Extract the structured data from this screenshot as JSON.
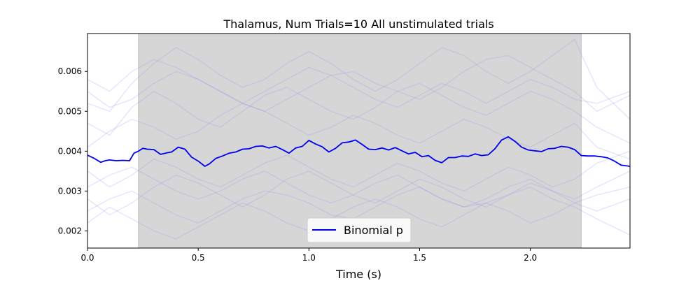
{
  "chart_data": {
    "type": "line",
    "title": "Thalamus, Num Trials=10 All unstimulated trials",
    "xlabel": "Time (s)",
    "ylabel": "",
    "xlim": [
      0.0,
      2.45
    ],
    "ylim": [
      0.00157,
      0.00695
    ],
    "x_ticks": [
      0.0,
      0.5,
      1.0,
      1.5,
      2.0
    ],
    "x_tick_labels": [
      "0.0",
      "0.5",
      "1.0",
      "1.5",
      "2.0"
    ],
    "y_ticks": [
      0.002,
      0.003,
      0.004,
      0.005,
      0.006
    ],
    "y_tick_labels": [
      "0.002",
      "0.003",
      "0.004",
      "0.005",
      "0.006"
    ],
    "shaded_region": {
      "x_start": 0.23,
      "x_end": 2.23,
      "color": "#d6d6d6"
    },
    "grid": false,
    "legend": {
      "placement": "lower-center",
      "entries": [
        "Binomial p"
      ]
    },
    "series": [
      {
        "name": "Binomial p",
        "color": "#0000ee",
        "x": [
          0.0,
          0.03,
          0.06,
          0.08,
          0.1,
          0.13,
          0.16,
          0.19,
          0.21,
          0.23,
          0.25,
          0.27,
          0.3,
          0.33,
          0.36,
          0.38,
          0.41,
          0.44,
          0.47,
          0.5,
          0.53,
          0.55,
          0.58,
          0.61,
          0.64,
          0.67,
          0.7,
          0.73,
          0.76,
          0.79,
          0.82,
          0.85,
          0.88,
          0.91,
          0.94,
          0.97,
          1.0,
          1.03,
          1.06,
          1.09,
          1.12,
          1.15,
          1.18,
          1.21,
          1.24,
          1.27,
          1.3,
          1.33,
          1.36,
          1.39,
          1.42,
          1.45,
          1.48,
          1.51,
          1.54,
          1.57,
          1.6,
          1.63,
          1.66,
          1.69,
          1.72,
          1.75,
          1.78,
          1.81,
          1.84,
          1.87,
          1.9,
          1.93,
          1.96,
          1.99,
          2.02,
          2.05,
          2.08,
          2.11,
          2.14,
          2.17,
          2.2,
          2.23,
          2.26,
          2.29,
          2.32,
          2.35,
          2.38,
          2.41,
          2.45
        ],
        "y": [
          0.0039,
          0.00382,
          0.00372,
          0.00376,
          0.00378,
          0.00376,
          0.00377,
          0.00376,
          0.00395,
          0.004,
          0.00407,
          0.00405,
          0.00404,
          0.00392,
          0.00396,
          0.00398,
          0.0041,
          0.00405,
          0.00385,
          0.00375,
          0.00362,
          0.00368,
          0.00382,
          0.00388,
          0.00395,
          0.00398,
          0.00405,
          0.00406,
          0.00412,
          0.00413,
          0.00408,
          0.00412,
          0.00404,
          0.00395,
          0.00408,
          0.00412,
          0.00427,
          0.00418,
          0.00411,
          0.00398,
          0.00407,
          0.00421,
          0.00423,
          0.00428,
          0.00417,
          0.00405,
          0.00404,
          0.00408,
          0.00403,
          0.00409,
          0.00401,
          0.00393,
          0.00397,
          0.00386,
          0.00389,
          0.00377,
          0.00371,
          0.00384,
          0.00384,
          0.00388,
          0.00387,
          0.00393,
          0.00389,
          0.00391,
          0.00406,
          0.00428,
          0.00436,
          0.00425,
          0.0041,
          0.00403,
          0.00401,
          0.00399,
          0.00406,
          0.00407,
          0.00412,
          0.0041,
          0.00404,
          0.00389,
          0.00388,
          0.00388,
          0.00386,
          0.00383,
          0.00375,
          0.00365,
          0.00362
        ]
      }
    ],
    "background_trials": {
      "color": "#8c8cf0",
      "opacity": 0.22,
      "x": [
        0.0,
        0.1,
        0.2,
        0.3,
        0.4,
        0.5,
        0.6,
        0.7,
        0.8,
        0.9,
        1.0,
        1.1,
        1.2,
        1.3,
        1.4,
        1.5,
        1.6,
        1.7,
        1.8,
        1.9,
        2.0,
        2.1,
        2.2,
        2.3,
        2.45
      ],
      "traces": [
        [
          0.0058,
          0.0055,
          0.006,
          0.0063,
          0.0061,
          0.0058,
          0.0055,
          0.0052,
          0.005,
          0.0053,
          0.0056,
          0.0059,
          0.006,
          0.0057,
          0.0055,
          0.0053,
          0.0056,
          0.006,
          0.0063,
          0.0064,
          0.0061,
          0.0058,
          0.0055,
          0.005,
          0.0054
        ],
        [
          0.0025,
          0.0028,
          0.003,
          0.0027,
          0.0024,
          0.0022,
          0.0025,
          0.0028,
          0.003,
          0.0029,
          0.0027,
          0.0024,
          0.0023,
          0.0026,
          0.0029,
          0.0031,
          0.0028,
          0.0026,
          0.0027,
          0.0029,
          0.0031,
          0.0028,
          0.0026,
          0.0023,
          0.0019
        ],
        [
          0.0047,
          0.0044,
          0.0051,
          0.0055,
          0.0052,
          0.0048,
          0.0046,
          0.005,
          0.0054,
          0.0056,
          0.0053,
          0.005,
          0.0048,
          0.0051,
          0.0055,
          0.0057,
          0.0054,
          0.0051,
          0.0049,
          0.0052,
          0.0055,
          0.0053,
          0.005,
          0.0046,
          0.0042
        ],
        [
          0.0031,
          0.0034,
          0.0036,
          0.0033,
          0.003,
          0.0028,
          0.003,
          0.0033,
          0.0035,
          0.0032,
          0.0029,
          0.0027,
          0.0029,
          0.0032,
          0.0034,
          0.0031,
          0.0028,
          0.0026,
          0.0028,
          0.0031,
          0.0033,
          0.003,
          0.0028,
          0.0031,
          0.0035
        ],
        [
          0.0052,
          0.005,
          0.0057,
          0.0062,
          0.0066,
          0.0063,
          0.0059,
          0.0056,
          0.0058,
          0.0062,
          0.0065,
          0.0062,
          0.0058,
          0.0055,
          0.0058,
          0.0062,
          0.0066,
          0.0064,
          0.006,
          0.0057,
          0.006,
          0.0064,
          0.0068,
          0.0056,
          0.0048
        ],
        [
          0.0022,
          0.0026,
          0.0023,
          0.002,
          0.0018,
          0.0021,
          0.0024,
          0.0027,
          0.0025,
          0.0022,
          0.002,
          0.0023,
          0.0026,
          0.0028,
          0.0026,
          0.0023,
          0.0021,
          0.0024,
          0.0027,
          0.0025,
          0.0022,
          0.0024,
          0.0027,
          0.0029,
          0.0031
        ],
        [
          0.0041,
          0.0045,
          0.0048,
          0.0046,
          0.0043,
          0.0045,
          0.0049,
          0.0052,
          0.005,
          0.0047,
          0.0044,
          0.0046,
          0.0049,
          0.0047,
          0.0044,
          0.0042,
          0.0045,
          0.0048,
          0.0046,
          0.0043,
          0.0041,
          0.0044,
          0.0047,
          0.0041,
          0.0038
        ],
        [
          0.0035,
          0.0031,
          0.0034,
          0.0038,
          0.0036,
          0.0033,
          0.0031,
          0.0034,
          0.0037,
          0.0039,
          0.0036,
          0.0033,
          0.0031,
          0.0034,
          0.0037,
          0.0035,
          0.0032,
          0.003,
          0.0033,
          0.0036,
          0.0034,
          0.0031,
          0.0033,
          0.0037,
          0.004
        ],
        [
          0.0055,
          0.0051,
          0.0053,
          0.0057,
          0.006,
          0.0058,
          0.0055,
          0.0052,
          0.0055,
          0.0058,
          0.0061,
          0.0059,
          0.0056,
          0.0053,
          0.0051,
          0.0054,
          0.0057,
          0.0055,
          0.0052,
          0.0055,
          0.0058,
          0.0056,
          0.0053,
          0.0052,
          0.0055
        ],
        [
          0.0028,
          0.0024,
          0.0027,
          0.0031,
          0.0034,
          0.0032,
          0.0029,
          0.0026,
          0.0029,
          0.0033,
          0.0035,
          0.0032,
          0.0029,
          0.0027,
          0.003,
          0.0033,
          0.0031,
          0.0028,
          0.0026,
          0.0029,
          0.0032,
          0.003,
          0.0027,
          0.0025,
          0.0028
        ]
      ]
    }
  }
}
